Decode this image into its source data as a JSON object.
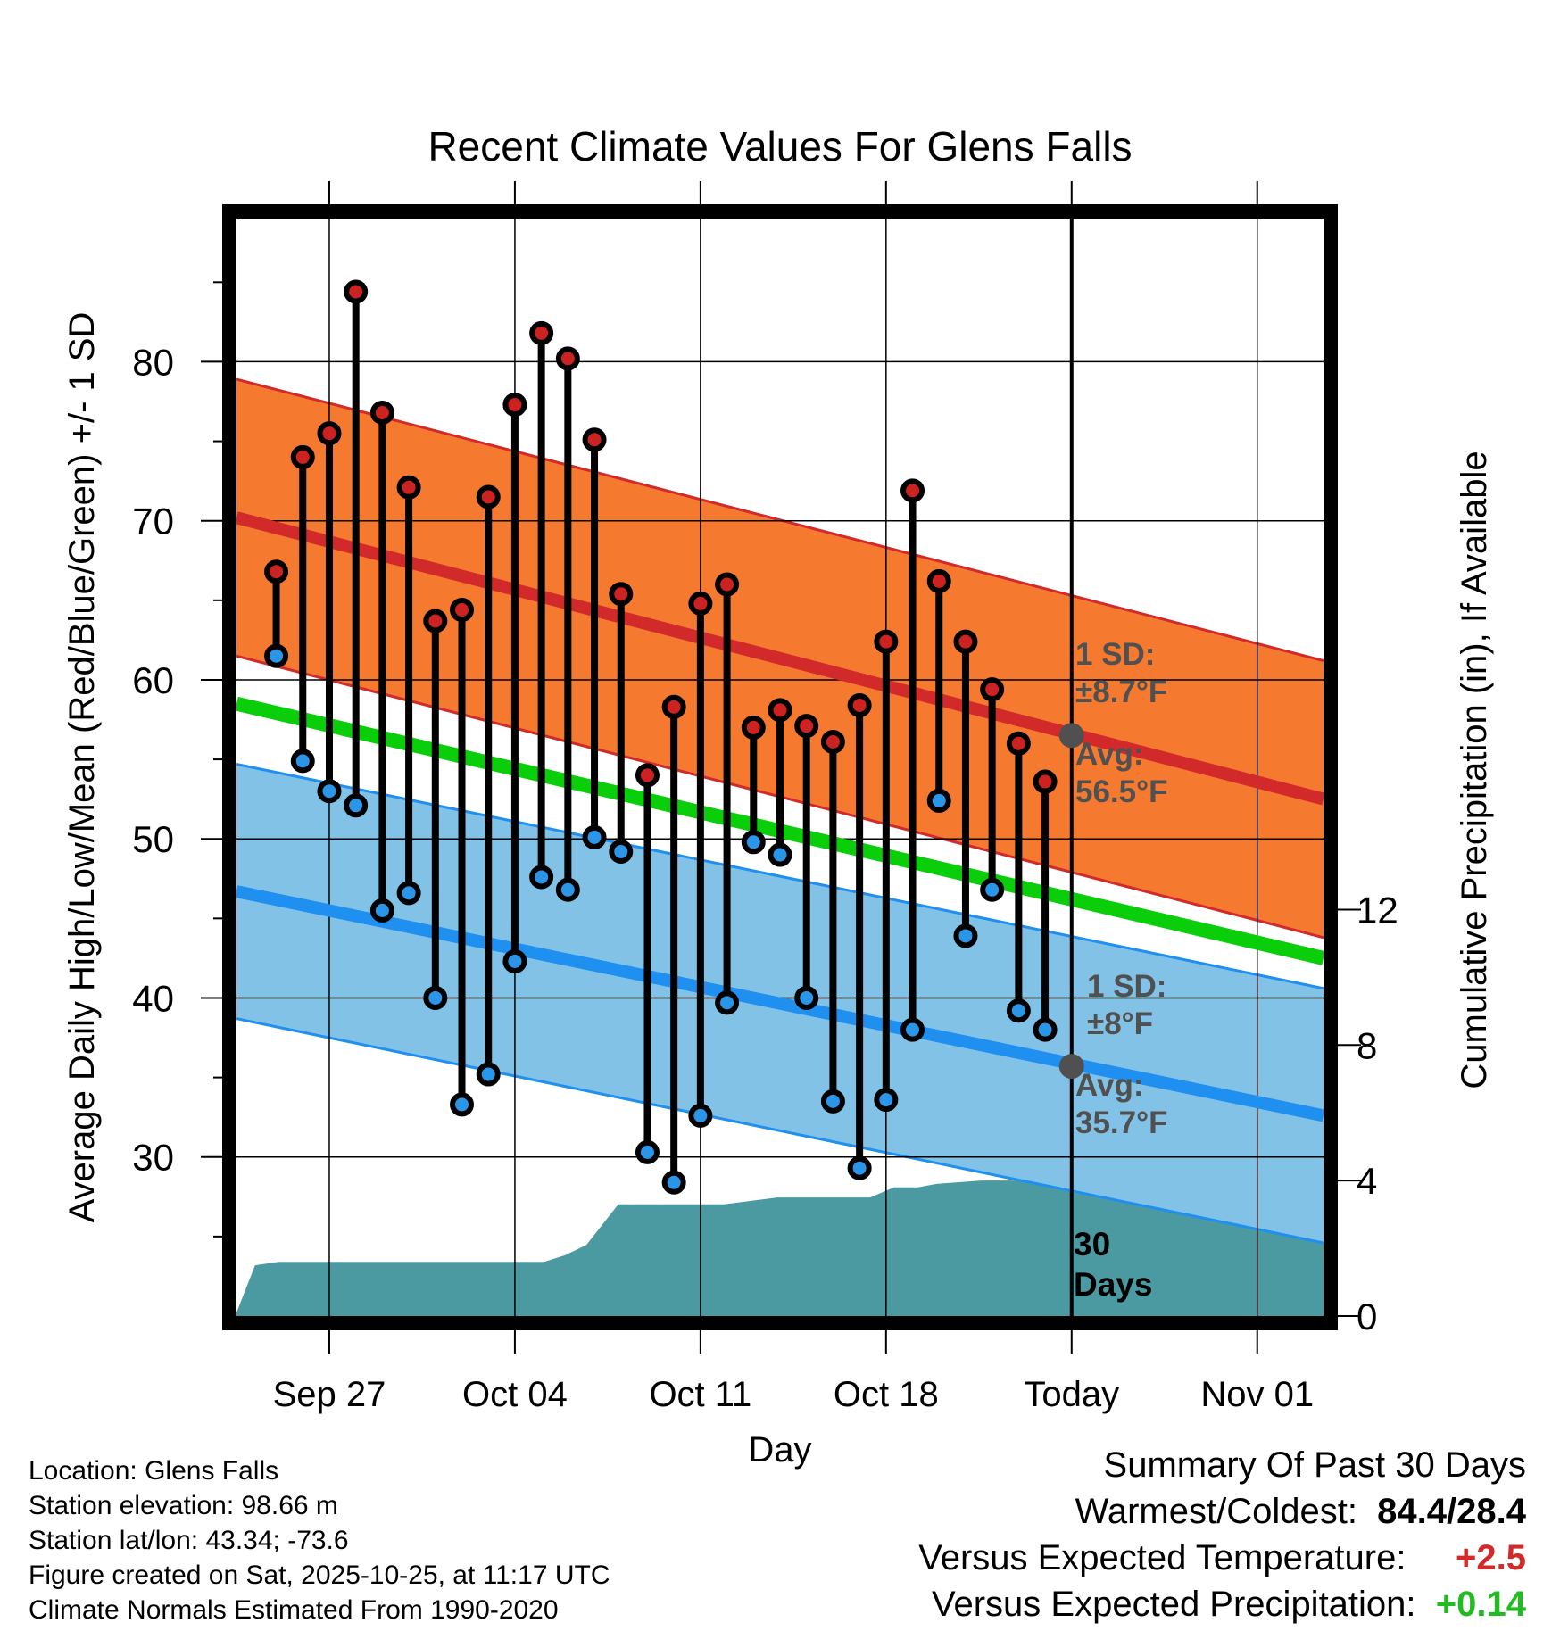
{
  "chart_data": {
    "type": "line",
    "title": "Recent Climate Values For Glens Falls",
    "xlabel": "Day",
    "ylabel": "Average Daily High/Low/Mean (Red/Blue/Green) +/- 1 SD",
    "ylabel_right": "Cumulative Precipitation (in), If Available",
    "x_range_days": [
      -31.5,
      9.5
    ],
    "ylim": [
      20,
      89
    ],
    "ylim_right": [
      0,
      32.4
    ],
    "x_ticks": [
      {
        "day": -28,
        "label": "Sep 27"
      },
      {
        "day": -21,
        "label": "Oct 04"
      },
      {
        "day": -14,
        "label": "Oct 11"
      },
      {
        "day": -7,
        "label": "Oct 18"
      },
      {
        "day": 0,
        "label": "Today"
      },
      {
        "day": 7,
        "label": "Nov 01"
      }
    ],
    "y_ticks": [
      30,
      40,
      50,
      60,
      70,
      80
    ],
    "y_ticks_right": [
      0,
      4,
      8,
      12
    ],
    "daily_high": [
      66.8,
      74.0,
      75.5,
      84.4,
      76.8,
      72.1,
      63.7,
      64.4,
      71.5,
      77.3,
      81.8,
      80.2,
      75.1,
      65.4,
      54.0,
      58.3,
      64.8,
      66.0,
      57.0,
      58.1,
      57.1,
      56.1,
      58.4,
      62.4,
      71.9,
      66.2,
      62.4,
      59.4,
      56.0,
      53.6
    ],
    "daily_low": [
      61.5,
      54.9,
      53.0,
      52.1,
      45.5,
      46.6,
      40.0,
      33.3,
      35.2,
      42.3,
      47.6,
      46.8,
      50.1,
      49.2,
      30.3,
      28.4,
      32.6,
      39.7,
      49.8,
      49.0,
      40.0,
      33.5,
      29.3,
      33.6,
      38.0,
      52.4,
      43.9,
      46.8,
      39.2,
      38.0
    ],
    "normal_high": {
      "start": 70.2,
      "end": 52.5,
      "sd": 8.7,
      "today_avg": 56.5
    },
    "normal_low": {
      "start": 46.7,
      "end": 32.6,
      "sd": 8.0,
      "today_avg": 35.7
    },
    "normal_mean": {
      "start": 58.5,
      "end": 42.5
    },
    "cum_precip_days": [
      -31.5,
      -30.8,
      -29.9,
      -19.9,
      -19.1,
      -18.3,
      -17.1,
      -14.1,
      -13.1,
      -12.1,
      -11.1,
      -8.1,
      -7.6,
      -6.7,
      -5.8,
      -5.1,
      -3.4,
      -2.6,
      0,
      9.5
    ],
    "cum_precip_values": [
      0.1,
      1.5,
      1.6,
      1.6,
      1.8,
      2.1,
      3.3,
      3.3,
      3.3,
      3.4,
      3.5,
      3.5,
      3.5,
      3.8,
      3.8,
      3.9,
      4.0,
      4.0,
      4.0,
      4.0
    ],
    "annotations": {
      "high_sd": "1 SD:",
      "high_sd_val": "±8.7°F",
      "high_avg": "Avg:",
      "high_avg_val": "56.5°F",
      "low_sd": "1 SD:",
      "low_sd_val": "±8°F",
      "low_avg": "Avg:",
      "low_avg_val": "35.7°F",
      "period_num": "30",
      "period_unit": "Days"
    },
    "colors": {
      "high_band": "#f57a30",
      "high_line": "#d22a2a",
      "low_band": "#83c2e7",
      "low_line": "#1f8ff0",
      "mean_line": "#0bce0b",
      "precip": "#4b9aa1",
      "high_dot": "#cc2222",
      "low_dot": "#2b95e8",
      "today_dot": "#505050",
      "annotation_text": "#505050"
    }
  },
  "info": {
    "location": "Location: Glens Falls",
    "elevation": "Station elevation: 98.66 m",
    "latlon": "Station lat/lon: 43.34; -73.6",
    "created": "Figure created on Sat, 2025-10-25, at 11:17 UTC",
    "normals": "Climate Normals Estimated From 1990-2020"
  },
  "summary": {
    "title": "Summary Of Past 30 Days",
    "warm_cold_label": "Warmest/Coldest:",
    "warm_cold_value": "84.4/28.4",
    "temp_label": "Versus Expected Temperature:",
    "temp_value": "+2.5",
    "temp_color": "#d22a2a",
    "precip_label": "Versus Expected Precipitation:",
    "precip_value": "+0.14",
    "precip_color": "#22bb22"
  }
}
